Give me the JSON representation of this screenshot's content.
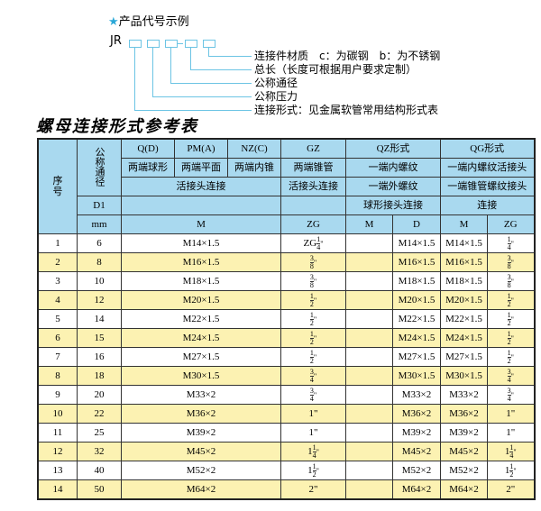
{
  "example": {
    "title": "产品代号示例",
    "prefix": "JR",
    "labels": [
      "连接件材质　c：为碳钢　b：为不锈钢",
      "总长（长度可根据用户要求定制）",
      "公称通径",
      "公称压力",
      "连接形式：见金属软管常用结构形式表"
    ]
  },
  "table_title": "螺母连接形式参考表",
  "colors": {
    "header": "#a9d9ef",
    "stripe": "#fcf2b2",
    "accent": "#2aa8d8"
  },
  "header": {
    "seq": "序　号",
    "dn": "公称通径",
    "r1": [
      "Q(D)",
      "PM(A)",
      "NZ(C)",
      "GZ",
      "QZ形式",
      "QG形式"
    ],
    "r2": [
      "两端球形",
      "两端平面",
      "两端内锥",
      "两端锥管",
      "一端内螺纹",
      "一端内螺纹活接头"
    ],
    "r3": [
      "活接头连接",
      "活接头连接",
      "一端外螺纹",
      "一端锥管螺纹接头"
    ],
    "r4": [
      "D1",
      "",
      "",
      "球形接头连接",
      "连接"
    ],
    "r5": [
      "mm",
      "M",
      "ZG",
      "M",
      "D",
      "M",
      "ZG"
    ]
  },
  "rows": [
    {
      "no": "1",
      "dn": "6",
      "m": "M14×1.5",
      "zg": {
        "w": "ZG",
        "n": "1",
        "d": "4",
        "s": "\""
      },
      "qzm": "",
      "qzd": "M14×1.5",
      "qgm": "M14×1.5",
      "qgzg": {
        "w": "",
        "n": "1",
        "d": "4",
        "s": "\""
      }
    },
    {
      "no": "2",
      "dn": "8",
      "m": "M16×1.5",
      "zg": {
        "w": "",
        "n": "3",
        "d": "8",
        "s": "\""
      },
      "qzm": "",
      "qzd": "M16×1.5",
      "qgm": "M16×1.5",
      "qgzg": {
        "w": "",
        "n": "3",
        "d": "8",
        "s": "\""
      }
    },
    {
      "no": "3",
      "dn": "10",
      "m": "M18×1.5",
      "zg": {
        "w": "",
        "n": "3",
        "d": "8",
        "s": "\""
      },
      "qzm": "",
      "qzd": "M18×1.5",
      "qgm": "M18×1.5",
      "qgzg": {
        "w": "",
        "n": "3",
        "d": "8",
        "s": "\""
      }
    },
    {
      "no": "4",
      "dn": "12",
      "m": "M20×1.5",
      "zg": {
        "w": "",
        "n": "1",
        "d": "2",
        "s": "\""
      },
      "qzm": "",
      "qzd": "M20×1.5",
      "qgm": "M20×1.5",
      "qgzg": {
        "w": "",
        "n": "1",
        "d": "2",
        "s": "\""
      }
    },
    {
      "no": "5",
      "dn": "14",
      "m": "M22×1.5",
      "zg": {
        "w": "",
        "n": "1",
        "d": "2",
        "s": "\""
      },
      "qzm": "",
      "qzd": "M22×1.5",
      "qgm": "M22×1.5",
      "qgzg": {
        "w": "",
        "n": "1",
        "d": "2",
        "s": "\""
      }
    },
    {
      "no": "6",
      "dn": "15",
      "m": "M24×1.5",
      "zg": {
        "w": "",
        "n": "1",
        "d": "2",
        "s": "\""
      },
      "qzm": "",
      "qzd": "M24×1.5",
      "qgm": "M24×1.5",
      "qgzg": {
        "w": "",
        "n": "1",
        "d": "2",
        "s": "\""
      }
    },
    {
      "no": "7",
      "dn": "16",
      "m": "M27×1.5",
      "zg": {
        "w": "",
        "n": "1",
        "d": "2",
        "s": "\""
      },
      "qzm": "",
      "qzd": "M27×1.5",
      "qgm": "M27×1.5",
      "qgzg": {
        "w": "",
        "n": "1",
        "d": "2",
        "s": "\""
      }
    },
    {
      "no": "8",
      "dn": "18",
      "m": "M30×1.5",
      "zg": {
        "w": "",
        "n": "3",
        "d": "4",
        "s": "\""
      },
      "qzm": "",
      "qzd": "M30×1.5",
      "qgm": "M30×1.5",
      "qgzg": {
        "w": "",
        "n": "3",
        "d": "4",
        "s": "\""
      }
    },
    {
      "no": "9",
      "dn": "20",
      "m": "M33×2",
      "zg": {
        "w": "",
        "n": "3",
        "d": "4",
        "s": "\""
      },
      "qzm": "",
      "qzd": "M33×2",
      "qgm": "M33×2",
      "qgzg": {
        "w": "",
        "n": "3",
        "d": "4",
        "s": "\""
      }
    },
    {
      "no": "10",
      "dn": "22",
      "m": "M36×2",
      "zg": {
        "w": "1\"",
        "n": "",
        "d": "",
        "s": ""
      },
      "qzm": "",
      "qzd": "M36×2",
      "qgm": "M36×2",
      "qgzg": {
        "w": "1\"",
        "n": "",
        "d": "",
        "s": ""
      }
    },
    {
      "no": "11",
      "dn": "25",
      "m": "M39×2",
      "zg": {
        "w": "1\"",
        "n": "",
        "d": "",
        "s": ""
      },
      "qzm": "",
      "qzd": "M39×2",
      "qgm": "M39×2",
      "qgzg": {
        "w": "1\"",
        "n": "",
        "d": "",
        "s": ""
      }
    },
    {
      "no": "12",
      "dn": "32",
      "m": "M45×2",
      "zg": {
        "w": "1",
        "n": "1",
        "d": "4",
        "s": "\""
      },
      "qzm": "",
      "qzd": "M45×2",
      "qgm": "M45×2",
      "qgzg": {
        "w": "1",
        "n": "1",
        "d": "4",
        "s": "\""
      }
    },
    {
      "no": "13",
      "dn": "40",
      "m": "M52×2",
      "zg": {
        "w": "1",
        "n": "1",
        "d": "2",
        "s": "\""
      },
      "qzm": "",
      "qzd": "M52×2",
      "qgm": "M52×2",
      "qgzg": {
        "w": "1",
        "n": "1",
        "d": "2",
        "s": "\""
      }
    },
    {
      "no": "14",
      "dn": "50",
      "m": "M64×2",
      "zg": {
        "w": "2\"",
        "n": "",
        "d": "",
        "s": ""
      },
      "qzm": "",
      "qzd": "M64×2",
      "qgm": "M64×2",
      "qgzg": {
        "w": "2\"",
        "n": "",
        "d": "",
        "s": ""
      }
    }
  ]
}
